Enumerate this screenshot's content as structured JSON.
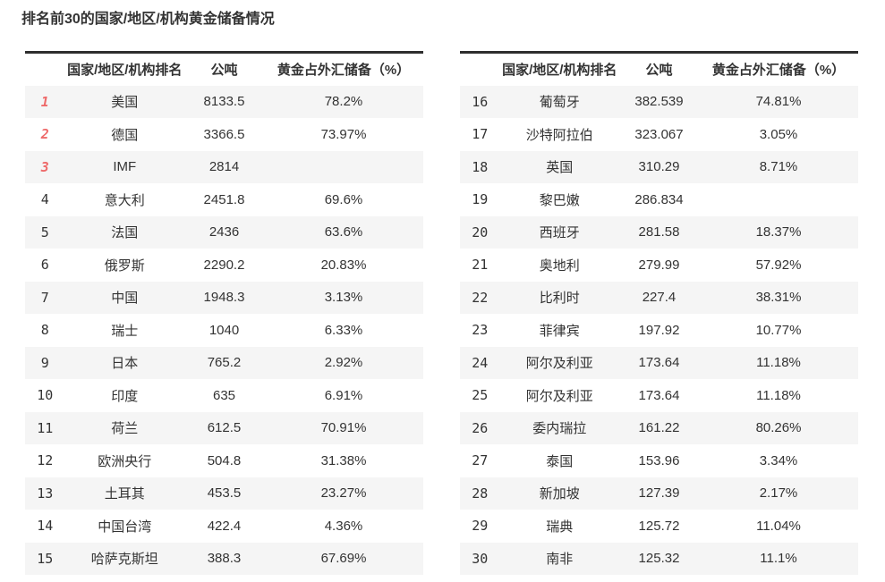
{
  "title": "排名前30的国家/地区/机构黄金储备情况",
  "colors": {
    "accent_red": "#ee6a6a",
    "rank_gray": "#606266",
    "row_alt_bg": "#f5f5f5",
    "text": "#333333",
    "table_top_border": "#2e2e2e"
  },
  "table": {
    "headers": [
      "",
      "国家/地区/机构排名",
      "公吨",
      "黄金占外汇储备（%）"
    ],
    "left_rows": [
      {
        "rank": "1",
        "name": "美国",
        "tons": "8133.5",
        "pct": "78.2%",
        "top": true
      },
      {
        "rank": "2",
        "name": "德国",
        "tons": "3366.5",
        "pct": "73.97%",
        "top": true
      },
      {
        "rank": "3",
        "name": "IMF",
        "tons": "2814",
        "pct": "",
        "top": true
      },
      {
        "rank": "4",
        "name": "意大利",
        "tons": "2451.8",
        "pct": "69.6%",
        "top": false
      },
      {
        "rank": "5",
        "name": "法国",
        "tons": "2436",
        "pct": "63.6%",
        "top": false
      },
      {
        "rank": "6",
        "name": "俄罗斯",
        "tons": "2290.2",
        "pct": "20.83%",
        "top": false
      },
      {
        "rank": "7",
        "name": "中国",
        "tons": "1948.3",
        "pct": "3.13%",
        "top": false
      },
      {
        "rank": "8",
        "name": "瑞士",
        "tons": "1040",
        "pct": "6.33%",
        "top": false
      },
      {
        "rank": "9",
        "name": "日本",
        "tons": "765.2",
        "pct": "2.92%",
        "top": false
      },
      {
        "rank": "10",
        "name": "印度",
        "tons": "635",
        "pct": "6.91%",
        "top": false
      },
      {
        "rank": "11",
        "name": "荷兰",
        "tons": "612.5",
        "pct": "70.91%",
        "top": false
      },
      {
        "rank": "12",
        "name": "欧洲央行",
        "tons": "504.8",
        "pct": "31.38%",
        "top": false
      },
      {
        "rank": "13",
        "name": "土耳其",
        "tons": "453.5",
        "pct": "23.27%",
        "top": false
      },
      {
        "rank": "14",
        "name": "中国台湾",
        "tons": "422.4",
        "pct": "4.36%",
        "top": false
      },
      {
        "rank": "15",
        "name": "哈萨克斯坦",
        "tons": "388.3",
        "pct": "67.69%",
        "top": false
      }
    ],
    "right_rows": [
      {
        "rank": "16",
        "name": "葡萄牙",
        "tons": "382.539",
        "pct": "74.81%",
        "top": false
      },
      {
        "rank": "17",
        "name": "沙特阿拉伯",
        "tons": "323.067",
        "pct": "3.05%",
        "top": false
      },
      {
        "rank": "18",
        "name": "英国",
        "tons": "310.29",
        "pct": "8.71%",
        "top": false
      },
      {
        "rank": "19",
        "name": "黎巴嫩",
        "tons": "286.834",
        "pct": "",
        "top": false
      },
      {
        "rank": "20",
        "name": "西班牙",
        "tons": "281.58",
        "pct": "18.37%",
        "top": false
      },
      {
        "rank": "21",
        "name": "奥地利",
        "tons": "279.99",
        "pct": "57.92%",
        "top": false
      },
      {
        "rank": "22",
        "name": "比利时",
        "tons": "227.4",
        "pct": "38.31%",
        "top": false
      },
      {
        "rank": "23",
        "name": "菲律宾",
        "tons": "197.92",
        "pct": "10.77%",
        "top": false
      },
      {
        "rank": "24",
        "name": "阿尔及利亚",
        "tons": "173.64",
        "pct": "11.18%",
        "top": false
      },
      {
        "rank": "25",
        "name": "阿尔及利亚",
        "tons": "173.64",
        "pct": "11.18%",
        "top": false
      },
      {
        "rank": "26",
        "name": "委内瑞拉",
        "tons": "161.22",
        "pct": "80.26%",
        "top": false
      },
      {
        "rank": "27",
        "name": "泰国",
        "tons": "153.96",
        "pct": "3.34%",
        "top": false
      },
      {
        "rank": "28",
        "name": "新加坡",
        "tons": "127.39",
        "pct": "2.17%",
        "top": false
      },
      {
        "rank": "29",
        "name": "瑞典",
        "tons": "125.72",
        "pct": "11.04%",
        "top": false
      },
      {
        "rank": "30",
        "name": "南非",
        "tons": "125.32",
        "pct": "11.1%",
        "top": false
      }
    ]
  }
}
